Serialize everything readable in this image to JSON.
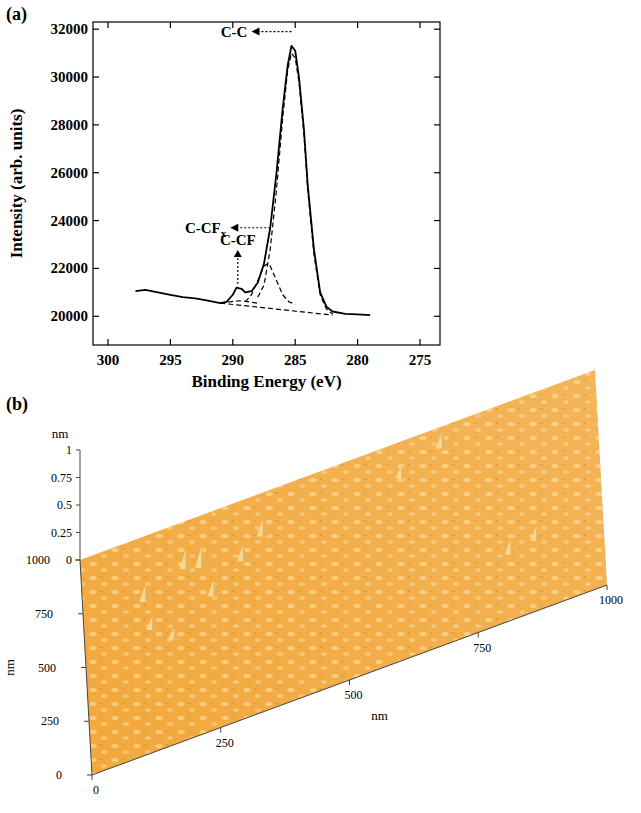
{
  "chart_data": [
    {
      "type": "line",
      "label": "(a)",
      "xlabel": "Binding Energy (eV)",
      "ylabel": "Intensity (arb. units)",
      "xlim": [
        301.2,
        273.4
      ],
      "ylim": [
        18800,
        32300
      ],
      "xticks": [
        300,
        295,
        290,
        285,
        280,
        275
      ],
      "yticks": [
        20000,
        22000,
        24000,
        26000,
        28000,
        30000,
        32000
      ],
      "series": [
        {
          "color": "#000000",
          "line_style": "solid",
          "x": [
            297.8,
            297,
            296,
            295,
            294,
            293,
            292,
            291,
            290.5,
            290,
            289.7,
            289.3,
            289,
            288.5,
            288,
            287.5,
            287,
            286.5,
            286,
            285.6,
            285.3,
            285,
            284.7,
            284.3,
            284,
            283.5,
            283,
            282.5,
            282,
            281,
            280,
            279
          ],
          "values": [
            21050,
            21100,
            21000,
            20900,
            20800,
            20750,
            20650,
            20550,
            20600,
            20900,
            21200,
            21150,
            21000,
            21050,
            21400,
            22200,
            23700,
            26000,
            28700,
            30500,
            31300,
            31100,
            30000,
            27800,
            25500,
            22800,
            21000,
            20400,
            20200,
            20100,
            20080,
            20050
          ]
        },
        {
          "color": "#000000",
          "line_style": "dashed",
          "x": [
            288,
            287.5,
            287,
            286.5,
            286,
            285.6,
            285.3,
            285,
            284.7,
            284.3,
            284,
            283.5,
            283,
            282.5,
            282
          ],
          "values": [
            20800,
            21300,
            22800,
            25300,
            28300,
            30300,
            31000,
            30800,
            29800,
            27600,
            25300,
            22600,
            20900,
            20300,
            20100
          ]
        },
        {
          "color": "#000000",
          "line_style": "dashed",
          "x": [
            289,
            288.5,
            288,
            287.5,
            287.2,
            287,
            286.5,
            286,
            285.5,
            285
          ],
          "values": [
            20600,
            20900,
            21500,
            22100,
            22200,
            22100,
            21500,
            20900,
            20600,
            20500
          ]
        },
        {
          "color": "#000000",
          "line_style": "dashed",
          "x": [
            291,
            290,
            289.5,
            289,
            288
          ],
          "values": [
            20550,
            20620,
            20650,
            20620,
            20550
          ]
        },
        {
          "color": "#000000",
          "line_style": "dashed",
          "x": [
            291,
            282
          ],
          "values": [
            20550,
            20050
          ]
        }
      ],
      "annotations": [
        {
          "text": "C-C",
          "x": 285.3,
          "y": 31900,
          "arrow": "left"
        },
        {
          "text": "C-CF",
          "sub": "x",
          "x": 287.0,
          "y": 23700,
          "arrow": "left"
        },
        {
          "text": "C-CF",
          "x": 289.6,
          "y": 21350,
          "arrow": "up"
        }
      ]
    },
    {
      "type": "surface",
      "label": "(b)",
      "xlabel": "nm",
      "ylabel": "nm",
      "zlabel": "nm",
      "color": "#f2a83c",
      "xlim": [
        0,
        1000
      ],
      "ylim": [
        0,
        1000
      ],
      "zlim": [
        0,
        1
      ],
      "xticks": [
        0,
        250,
        500,
        750,
        1000
      ],
      "yticks": [
        0,
        250,
        500,
        750,
        1000
      ],
      "zticks": [
        0,
        0.25,
        0.5,
        0.75,
        1
      ],
      "points": {
        "x": [
          120,
          200,
          230,
          310,
          350,
          700,
          620,
          130,
          250,
          820,
          870,
          170
        ],
        "y": [
          700,
          780,
          760,
          720,
          800,
          900,
          830,
          560,
          610,
          300,
          320,
          480
        ],
        "z": [
          0.15,
          0.18,
          0.2,
          0.15,
          0.15,
          0.15,
          0.12,
          0.12,
          0.14,
          0.14,
          0.13,
          0.1
        ]
      }
    }
  ]
}
